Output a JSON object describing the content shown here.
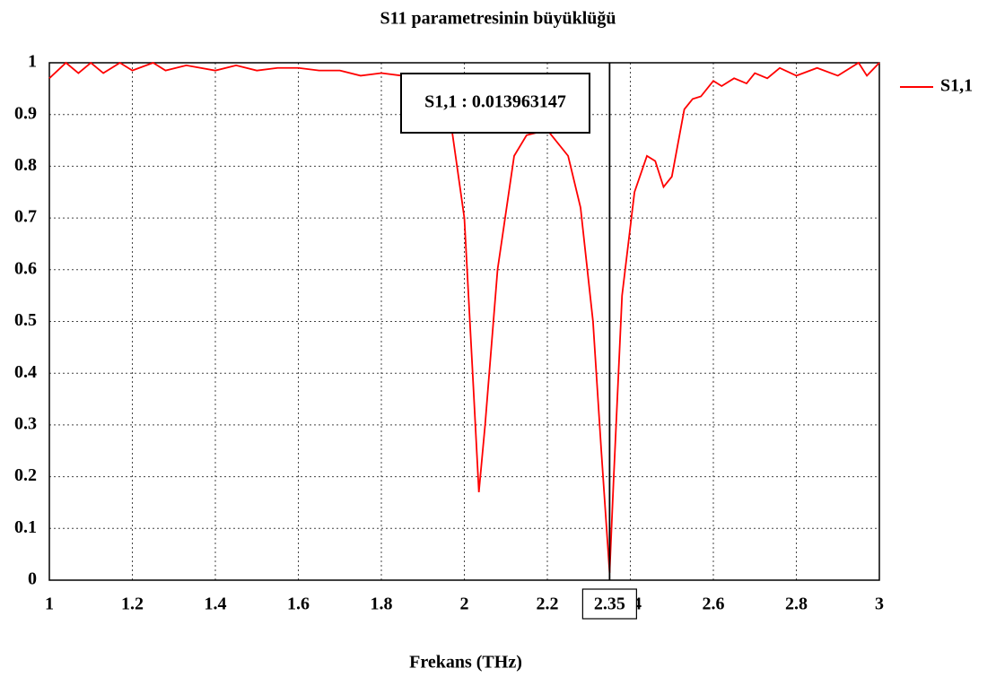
{
  "chart_data": {
    "type": "line",
    "title": "S11 parametresinin büyüklüğü",
    "x_label": "Frekans (THz)",
    "x": [
      1.0,
      1.04,
      1.07,
      1.1,
      1.13,
      1.17,
      1.2,
      1.25,
      1.28,
      1.33,
      1.4,
      1.45,
      1.5,
      1.55,
      1.6,
      1.65,
      1.7,
      1.75,
      1.8,
      1.85,
      1.9,
      1.95,
      1.97,
      2.0,
      2.02,
      2.035,
      2.05,
      2.08,
      2.12,
      2.15,
      2.2,
      2.25,
      2.28,
      2.31,
      2.33,
      2.35,
      2.36,
      2.38,
      2.41,
      2.44,
      2.46,
      2.48,
      2.5,
      2.53,
      2.55,
      2.57,
      2.6,
      2.62,
      2.65,
      2.68,
      2.7,
      2.73,
      2.76,
      2.8,
      2.85,
      2.9,
      2.95,
      2.97,
      3.0
    ],
    "series": [
      {
        "name": "S1,1",
        "color": "#ff0000",
        "values": [
          0.97,
          1.0,
          0.98,
          1.0,
          0.98,
          1.0,
          0.985,
          1.0,
          0.985,
          0.995,
          0.985,
          0.995,
          0.985,
          0.99,
          0.99,
          0.985,
          0.985,
          0.975,
          0.98,
          0.975,
          0.97,
          0.9,
          0.87,
          0.7,
          0.4,
          0.17,
          0.3,
          0.6,
          0.82,
          0.86,
          0.87,
          0.82,
          0.72,
          0.5,
          0.25,
          0.014,
          0.2,
          0.55,
          0.75,
          0.82,
          0.81,
          0.76,
          0.78,
          0.91,
          0.93,
          0.935,
          0.965,
          0.955,
          0.97,
          0.96,
          0.98,
          0.97,
          0.99,
          0.975,
          0.99,
          0.975,
          1.0,
          0.975,
          1.0
        ]
      }
    ],
    "xlim": [
      1,
      3
    ],
    "ylim": [
      0,
      1
    ],
    "xticks": [
      1,
      1.2,
      1.4,
      1.6,
      1.8,
      2,
      2.2,
      2.4,
      2.6,
      2.8,
      3
    ],
    "yticks": [
      0,
      0.1,
      0.2,
      0.3,
      0.4,
      0.5,
      0.6,
      0.7,
      0.8,
      0.9,
      1
    ],
    "grid": true,
    "legend": "right",
    "marker_x": 2.35,
    "annotation": "S1,1 : 0.013963147"
  }
}
